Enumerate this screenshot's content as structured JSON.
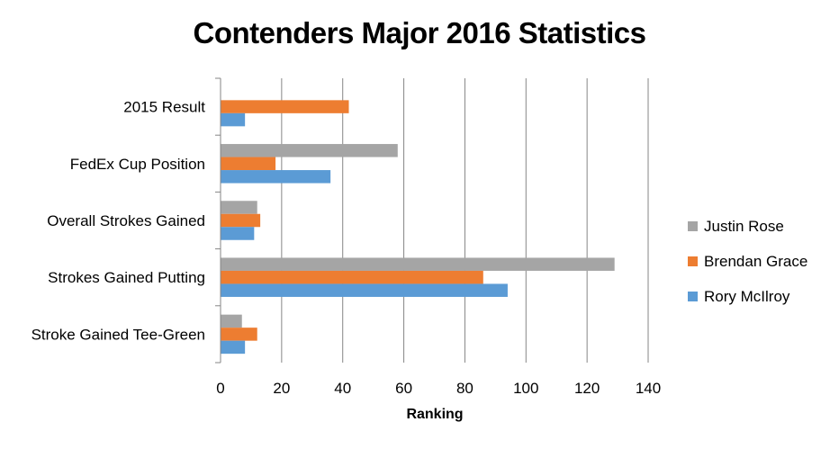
{
  "chart_data": {
    "type": "bar",
    "orientation": "horizontal",
    "title": "Contenders Major 2016 Statistics",
    "xlabel": "Ranking",
    "ylabel": "",
    "xlim": [
      0,
      140
    ],
    "x_ticks": [
      0,
      20,
      40,
      60,
      80,
      100,
      120,
      140
    ],
    "grid": true,
    "legend_position": "right",
    "categories": [
      "2015 Result",
      "FedEx Cup Position",
      "Overall Strokes Gained",
      "Strokes Gained Putting",
      "Stroke Gained Tee-Green"
    ],
    "series": [
      {
        "name": "Justin Rose",
        "color": "#A5A5A5",
        "values": [
          0,
          58,
          12,
          129,
          7
        ]
      },
      {
        "name": "Brendan Grace",
        "color": "#ED7D31",
        "values": [
          42,
          18,
          13,
          86,
          12
        ]
      },
      {
        "name": "Rory McIlroy",
        "color": "#5B9BD5",
        "values": [
          8,
          36,
          11,
          94,
          8
        ]
      }
    ],
    "legend_order": [
      "Justin Rose",
      "Brendan Grace",
      "Rory McIlroy"
    ]
  }
}
